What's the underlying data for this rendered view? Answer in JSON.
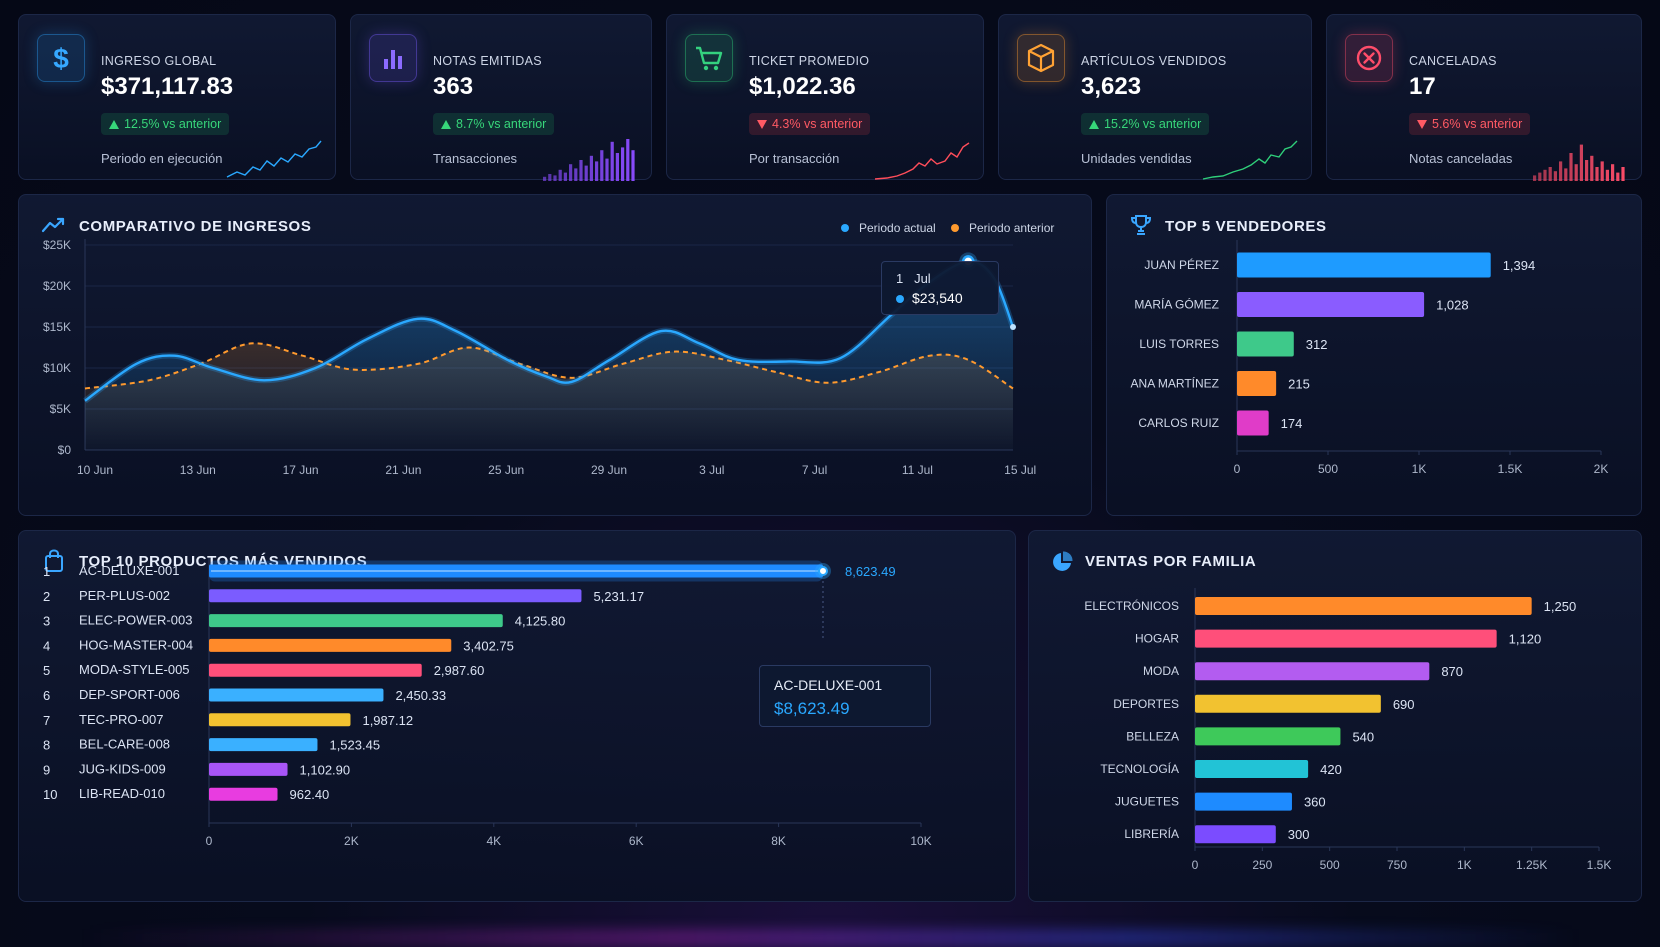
{
  "kpis": [
    {
      "label": "INGRESO GLOBAL",
      "value": "$371,117.83",
      "change": "12.5% vs anterior",
      "direction": "up",
      "sub": "Periodo en ejecución",
      "icon": "dollar-icon",
      "color": "#2a9df4"
    },
    {
      "label": "NOTAS EMITIDAS",
      "value": "363",
      "change": "8.7% vs anterior",
      "direction": "up",
      "sub": "Transacciones",
      "icon": "bar-chart-icon",
      "color": "#7b5cff"
    },
    {
      "label": "TICKET PROMEDIO",
      "value": "$1,022.36",
      "change": "4.3% vs anterior",
      "direction": "down",
      "sub": "Por transacción",
      "icon": "cart-icon",
      "color": "#2fcf7a"
    },
    {
      "label": "ARTÍCULOS VENDIDOS",
      "value": "3,623",
      "change": "15.2% vs anterior",
      "direction": "up",
      "sub": "Unidades vendidas",
      "icon": "box-icon",
      "color": "#ff9a2e"
    },
    {
      "label": "CANCELADAS",
      "value": "17",
      "change": "5.6% vs anterior",
      "direction": "down",
      "sub": "Notas canceladas",
      "icon": "cancel-icon",
      "color": "#ff4d6a"
    }
  ],
  "revenue": {
    "title": "COMPARATIVO DE INGRESOS",
    "legend": [
      "Periodo actual",
      "Periodo anterior"
    ],
    "tooltip_date": "1   Jul",
    "tooltip_value": "$23,540"
  },
  "sellers": {
    "title": "TOP 5 VENDEDORES"
  },
  "products": {
    "title": "TOP 10 PRODUCTOS MÁS VENDIDOS",
    "tooltip_name": "AC-DELUXE-001",
    "tooltip_value": "$8,623.49"
  },
  "families": {
    "title": "VENTAS POR FAMILIA"
  },
  "chart_data": [
    {
      "type": "area",
      "title": "COMPARATIVO DE INGRESOS",
      "x": [
        "10 Jun",
        "13 Jun",
        "17 Jun",
        "21 Jun",
        "25 Jun",
        "29 Jun",
        "3 Jul",
        "7 Jul",
        "11 Jul",
        "15 Jul"
      ],
      "x_points": [
        0,
        1,
        2,
        3,
        4,
        5,
        6,
        7,
        8,
        9,
        10,
        11,
        12,
        13,
        14,
        15,
        16,
        17,
        18,
        19,
        20,
        21,
        22,
        23,
        24,
        25,
        26,
        27,
        28,
        29,
        30,
        31,
        32,
        33,
        34,
        35,
        36,
        37,
        38,
        39,
        40,
        41,
        42,
        43,
        44,
        45,
        46,
        47,
        48,
        49,
        50,
        51,
        52,
        53,
        54,
        55,
        56,
        57,
        58,
        59,
        60,
        61,
        62,
        63,
        64,
        65,
        66,
        67,
        68,
        69,
        70,
        71,
        72,
        73,
        74,
        75,
        76,
        77,
        78,
        79,
        80,
        81,
        82,
        83,
        84,
        85,
        86,
        87,
        88,
        89,
        90,
        91,
        92,
        93,
        94,
        95,
        96,
        97,
        98,
        99,
        100,
        101,
        102,
        103,
        104,
        105,
        106,
        107,
        108,
        109,
        110,
        111,
        112,
        113,
        114,
        115,
        116,
        117,
        118,
        119,
        120,
        121,
        122,
        123,
        124,
        125,
        126,
        127,
        128,
        129,
        130,
        131,
        132,
        133,
        134,
        135,
        136,
        137,
        138,
        139,
        140,
        141,
        142,
        143,
        144,
        145
      ],
      "series": [
        {
          "name": "Periodo actual",
          "color": "#2aa8ff",
          "points": [
            [
              0,
              6000
            ],
            [
              8,
              10500
            ],
            [
              14,
              11500
            ],
            [
              20,
              10000
            ],
            [
              28,
              8500
            ],
            [
              36,
              10000
            ],
            [
              44,
              13500
            ],
            [
              52,
              16000
            ],
            [
              58,
              14500
            ],
            [
              66,
              11000
            ],
            [
              72,
              9000
            ],
            [
              76,
              8300
            ],
            [
              82,
              11000
            ],
            [
              90,
              14500
            ],
            [
              96,
              13000
            ],
            [
              102,
              11000
            ],
            [
              110,
              10800
            ],
            [
              118,
              11200
            ],
            [
              126,
              16500
            ],
            [
              132,
              20500
            ],
            [
              138,
              23000
            ],
            [
              142,
              21000
            ],
            [
              145,
              15000
            ]
          ]
        },
        {
          "name": "Periodo anterior",
          "color": "#ff9a2e",
          "points": [
            [
              0,
              7500
            ],
            [
              10,
              8500
            ],
            [
              18,
              10500
            ],
            [
              26,
              13000
            ],
            [
              34,
              11500
            ],
            [
              42,
              9800
            ],
            [
              52,
              10500
            ],
            [
              60,
              12500
            ],
            [
              68,
              10500
            ],
            [
              76,
              8800
            ],
            [
              84,
              10500
            ],
            [
              92,
              12000
            ],
            [
              100,
              11000
            ],
            [
              108,
              9500
            ],
            [
              116,
              8200
            ],
            [
              124,
              9500
            ],
            [
              132,
              11500
            ],
            [
              138,
              11000
            ],
            [
              145,
              7500
            ]
          ]
        }
      ],
      "ylim": [
        0,
        25000
      ],
      "yticks": [
        "$0",
        "$5K",
        "$10K",
        "$15K",
        "$20K",
        "$25K"
      ]
    },
    {
      "type": "bar",
      "title": "TOP 5 VENDEDORES",
      "categories": [
        "JUAN PÉREZ",
        "MARÍA GÓMEZ",
        "LUIS TORRES",
        "ANA MARTÍNEZ",
        "CARLOS RUIZ"
      ],
      "values": [
        1394,
        1028,
        312,
        215,
        174
      ],
      "labels": [
        "1,394",
        "1,028",
        "312",
        "215",
        "174"
      ],
      "colors": [
        "#1e9bff",
        "#8a5cff",
        "#3ec98a",
        "#ff8a2a",
        "#e03cc8"
      ],
      "xlim": [
        0,
        2000
      ],
      "xticks": [
        "0",
        "500",
        "1K",
        "1.5K",
        "2K"
      ]
    },
    {
      "type": "bar",
      "title": "TOP 10 PRODUCTOS MÁS VENDIDOS",
      "ranks": [
        "1",
        "2",
        "3",
        "4",
        "5",
        "6",
        "7",
        "8",
        "9",
        "10"
      ],
      "categories": [
        "AC-DELUXE-001",
        "PER-PLUS-002",
        "ELEC-POWER-003",
        "HOG-MASTER-004",
        "MODA-STYLE-005",
        "DEP-SPORT-006",
        "TEC-PRO-007",
        "BEL-CARE-008",
        "JUG-KIDS-009",
        "LIB-READ-010"
      ],
      "values": [
        8623.49,
        5231.17,
        4125.8,
        3402.75,
        2987.6,
        2450.33,
        1987.12,
        1523.45,
        1102.9,
        962.4
      ],
      "labels": [
        "8,623.49",
        "5,231.17",
        "4,125.80",
        "3,402.75",
        "2,987.60",
        "2,450.33",
        "1,987.12",
        "1,523.45",
        "1,102.90",
        "962.40"
      ],
      "colors": [
        "#1e8bff",
        "#7b5cff",
        "#3ec98a",
        "#ff8a2a",
        "#ff4f7a",
        "#3ab0ff",
        "#f2c230",
        "#3ab0ff",
        "#a855f7",
        "#e83ce0"
      ],
      "xlim": [
        0,
        10000
      ],
      "xticks": [
        "0",
        "2K",
        "4K",
        "6K",
        "8K",
        "10K"
      ]
    },
    {
      "type": "bar",
      "title": "VENTAS POR FAMILIA",
      "categories": [
        "ELECTRÓNICOS",
        "HOGAR",
        "MODA",
        "DEPORTES",
        "BELLEZA",
        "TECNOLOGÍA",
        "JUGUETES",
        "LIBRERÍA"
      ],
      "values": [
        1250,
        1120,
        870,
        690,
        540,
        420,
        360,
        300
      ],
      "labels": [
        "1,250",
        "1,120",
        "870",
        "690",
        "540",
        "420",
        "360",
        "300"
      ],
      "colors": [
        "#ff8a2a",
        "#ff4f7a",
        "#b35cf0",
        "#f2c230",
        "#3ec95a",
        "#22c3d6",
        "#1e8bff",
        "#7b4cff"
      ],
      "xlim": [
        0,
        1500
      ],
      "xticks": [
        "0",
        "250",
        "500",
        "750",
        "1K",
        "1.25K",
        "1.5K"
      ]
    }
  ]
}
